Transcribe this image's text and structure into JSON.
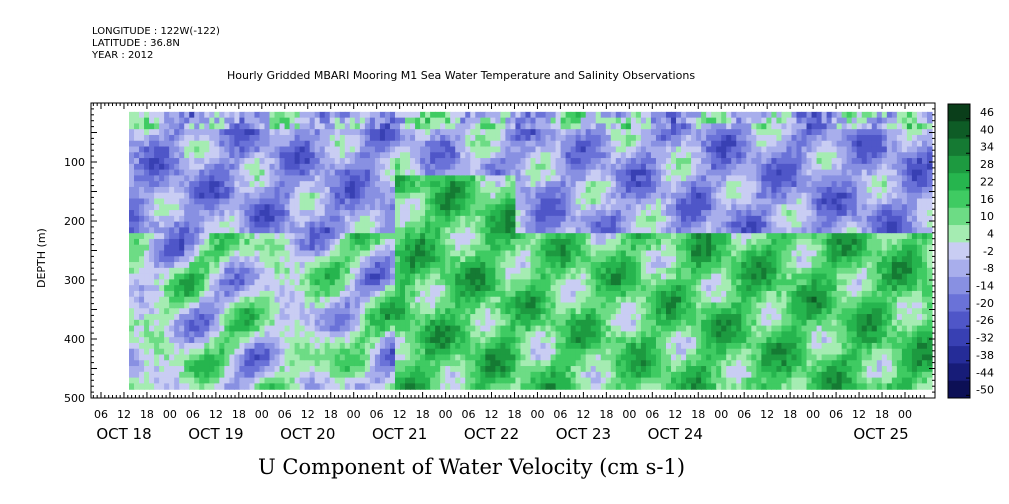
{
  "meta": {
    "longitude": "LONGITUDE : 122W(-122)",
    "latitude": "LATITUDE : 36.8N",
    "year": "YEAR : 2012"
  },
  "chart_data": {
    "type": "heatmap",
    "title": "Hourly Gridded MBARI Mooring M1 Sea Water Temperature and Salinity Observations",
    "xlabel": "U Component of Water Velocity (cm s-1)",
    "ylabel": "DEPTH (m)",
    "ylim": [
      500,
      0
    ],
    "y_ticks": [
      100,
      200,
      300,
      400,
      500
    ],
    "y_tick_labels": [
      "100",
      "200",
      "300",
      "400",
      "500"
    ],
    "x_hour_ticks": [
      "06",
      "12",
      "18",
      "00",
      "06",
      "12",
      "18",
      "00",
      "06",
      "12",
      "18",
      "00",
      "06",
      "12",
      "18",
      "00",
      "06",
      "12",
      "18",
      "00",
      "06",
      "12",
      "18",
      "00",
      "06",
      "12",
      "18",
      "00",
      "06",
      "12",
      "18",
      "00",
      "06",
      "12",
      "18",
      "00"
    ],
    "x_day_labels": [
      "OCT 18",
      "OCT 19",
      "OCT 20",
      "OCT 21",
      "OCT 22",
      "OCT 23",
      "OCT 24",
      "OCT 25"
    ],
    "colorbar": {
      "labels": [
        "46",
        "40",
        "34",
        "28",
        "22",
        "16",
        "10",
        "4",
        "-2",
        "-8",
        "-14",
        "-20",
        "-26",
        "-32",
        "-38",
        "-44",
        "-50"
      ],
      "range": [
        -50,
        46
      ],
      "colors": [
        "#0a3e1a",
        "#0e5c26",
        "#157a33",
        "#1d9a40",
        "#26b54e",
        "#3fcb62",
        "#6ddc85",
        "#a5ecb2",
        "#c9cdf3",
        "#a8aeec",
        "#8890e2",
        "#6a72d8",
        "#4f56c8",
        "#3840b3",
        "#252c98",
        "#171c78",
        "#0c0f55"
      ]
    },
    "gridded_field_summary": [
      {
        "period": "Oct 18-20",
        "upper_0_250m": "mostly negative (-5 to -25)",
        "lower_250_480m": "mixed, green patches +5 to +20"
      },
      {
        "period": "Oct 21",
        "upper_0_250m": "positive band near 150-480m",
        "lower_250_480m": "strong positive (+15 to +25)"
      },
      {
        "period": "Oct 22-23",
        "upper_0_250m": "negative near surface (-15)",
        "lower_250_480m": "positive (+10 to +25)"
      },
      {
        "period": "Oct 24-25",
        "upper_0_250m": "negative near surface",
        "lower_250_480m": "positive (+10 to +20)"
      }
    ]
  }
}
